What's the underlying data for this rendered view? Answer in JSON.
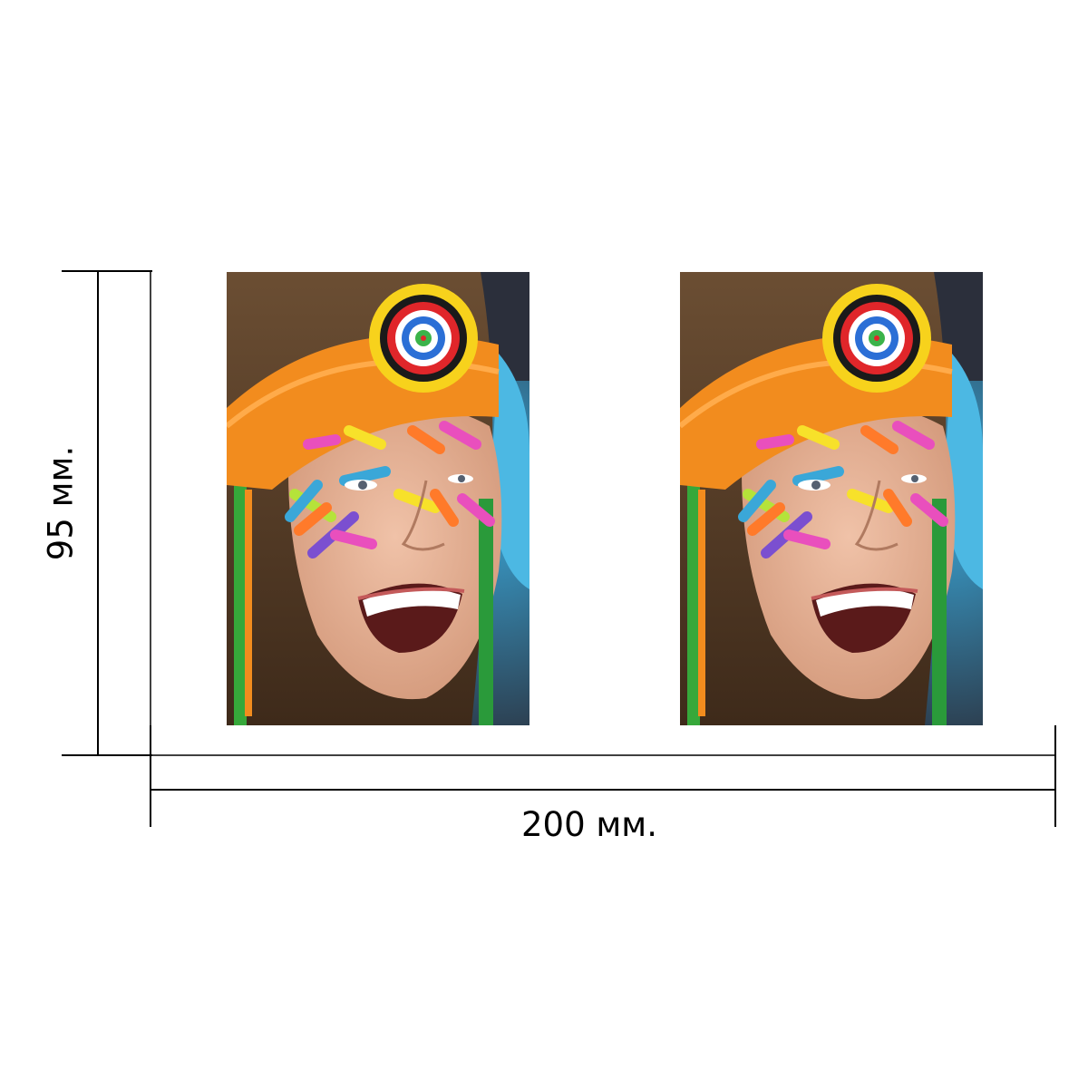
{
  "dimensions": {
    "width_label": "200 мм.",
    "height_label": "95 мм."
  },
  "photos": [
    {
      "name": "photo-left"
    },
    {
      "name": "photo-right"
    }
  ],
  "colors": {
    "headband": "#f28c1e",
    "background_blue": "#3aa7d8",
    "hair": "#5a4028",
    "skin": "#e9b59a",
    "lines": "#000000"
  }
}
